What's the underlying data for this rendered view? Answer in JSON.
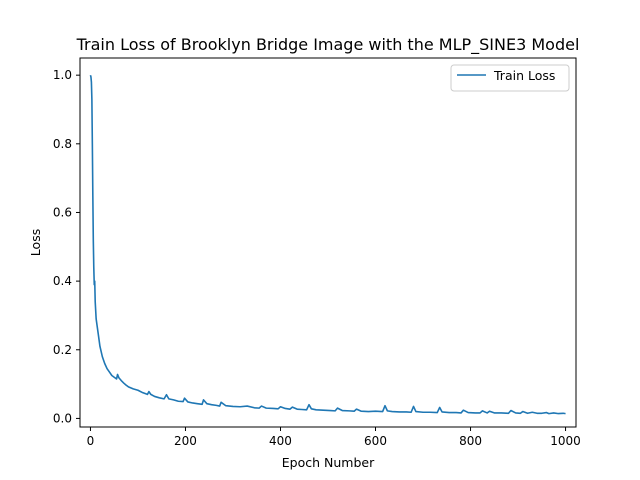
{
  "chart_data": {
    "type": "line",
    "title": "Train Loss of Brooklyn Bridge Image with the MLP_SINE3 Model",
    "xlabel": "Epoch Number",
    "ylabel": "Loss",
    "xlim": [
      -22,
      1022
    ],
    "ylim": [
      -0.025,
      1.05
    ],
    "xticks": [
      0,
      200,
      400,
      600,
      800,
      1000
    ],
    "yticks": [
      0.0,
      0.2,
      0.4,
      0.6,
      0.8,
      1.0
    ],
    "xtick_labels": [
      "0",
      "200",
      "400",
      "600",
      "800",
      "1000"
    ],
    "ytick_labels": [
      "0.0",
      "0.2",
      "0.4",
      "0.6",
      "0.8",
      "1.0"
    ],
    "grid": false,
    "legend_position": "top-right",
    "series": [
      {
        "name": "Train Loss",
        "color": "#1f77b4",
        "x": [
          0,
          1,
          2,
          3,
          4,
          5,
          6,
          7,
          8,
          9,
          10,
          12,
          14,
          17,
          20,
          25,
          30,
          35,
          40,
          45,
          50,
          55,
          57,
          60,
          65,
          70,
          75,
          80,
          90,
          100,
          110,
          120,
          123,
          127,
          135,
          145,
          155,
          160,
          165,
          175,
          185,
          195,
          198,
          205,
          215,
          225,
          235,
          238,
          245,
          255,
          265,
          272,
          275,
          285,
          300,
          315,
          330,
          345,
          355,
          360,
          370,
          385,
          395,
          400,
          410,
          420,
          425,
          435,
          445,
          455,
          460,
          465,
          475,
          490,
          505,
          515,
          520,
          530,
          545,
          555,
          560,
          570,
          585,
          600,
          615,
          620,
          625,
          635,
          650,
          665,
          675,
          680,
          685,
          700,
          715,
          730,
          735,
          740,
          755,
          770,
          780,
          785,
          795,
          810,
          820,
          825,
          835,
          840,
          850,
          865,
          880,
          885,
          895,
          905,
          910,
          920,
          930,
          940,
          950,
          960,
          965,
          975,
          985,
          995,
          1000
        ],
        "values": [
          1.0,
          0.995,
          0.98,
          0.93,
          0.8,
          0.65,
          0.52,
          0.44,
          0.39,
          0.4,
          0.34,
          0.29,
          0.27,
          0.24,
          0.21,
          0.18,
          0.16,
          0.145,
          0.135,
          0.125,
          0.12,
          0.115,
          0.128,
          0.118,
          0.11,
          0.103,
          0.097,
          0.092,
          0.086,
          0.082,
          0.075,
          0.07,
          0.078,
          0.07,
          0.064,
          0.06,
          0.057,
          0.069,
          0.057,
          0.054,
          0.05,
          0.049,
          0.059,
          0.048,
          0.045,
          0.043,
          0.041,
          0.054,
          0.043,
          0.04,
          0.038,
          0.036,
          0.047,
          0.037,
          0.035,
          0.034,
          0.036,
          0.031,
          0.03,
          0.036,
          0.03,
          0.029,
          0.028,
          0.034,
          0.029,
          0.027,
          0.033,
          0.027,
          0.026,
          0.025,
          0.04,
          0.028,
          0.025,
          0.024,
          0.023,
          0.022,
          0.03,
          0.023,
          0.022,
          0.021,
          0.027,
          0.021,
          0.02,
          0.021,
          0.02,
          0.037,
          0.022,
          0.02,
          0.019,
          0.019,
          0.018,
          0.035,
          0.02,
          0.018,
          0.018,
          0.017,
          0.032,
          0.019,
          0.017,
          0.017,
          0.016,
          0.024,
          0.017,
          0.016,
          0.016,
          0.022,
          0.016,
          0.021,
          0.016,
          0.016,
          0.015,
          0.023,
          0.016,
          0.015,
          0.02,
          0.015,
          0.018,
          0.015,
          0.015,
          0.017,
          0.014,
          0.016,
          0.014,
          0.015,
          0.014
        ]
      }
    ]
  }
}
